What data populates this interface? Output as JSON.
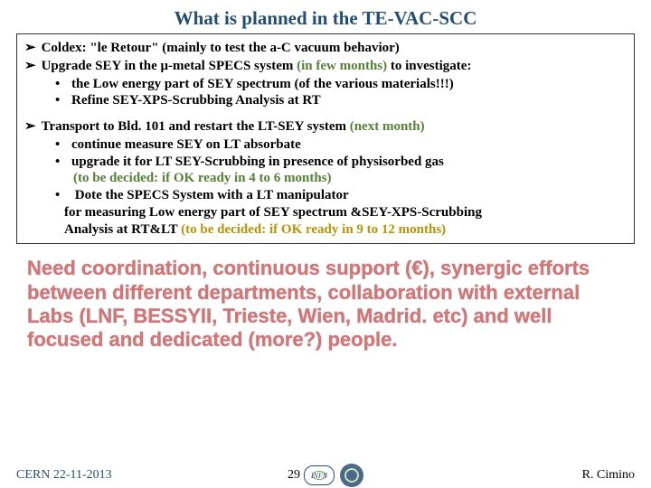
{
  "title": "What is planned in the TE-VAC-SCC",
  "block1": {
    "item1_prefix": "Coldex: \"le Retour\" ",
    "item1_suffix": "(mainly to test the a-C vacuum behavior)",
    "item2_prefix": "Upgrade SEY in the μ-metal SPECS system ",
    "item2_green": "(in few months)",
    "item2_suffix": " to investigate:",
    "sub1": "the Low energy part of SEY spectrum (of the various materials!!!)",
    "sub2": "Refine SEY-XPS-Scrubbing Analysis at RT"
  },
  "block2": {
    "item1_prefix": "Transport to Bld. 101 and restart the LT-SEY system ",
    "item1_green": "(next month)",
    "sub1": "continue measure SEY on LT absorbate",
    "sub2": "upgrade it for LT SEY-Scrubbing in presence of physisorbed gas",
    "sub2_paren": "(to be decided: if OK ready in 4 to 6 months)",
    "sub3a": "Dote the SPECS System with a LT manipulator",
    "sub3b": "for measuring Low energy part of SEY spectrum &SEY-XPS-Scrubbing",
    "sub3c_prefix": "Analysis at RT&LT ",
    "sub3c_orange": "(to be decided: if OK ready in 9 to 12 months)"
  },
  "need": "Need coordination, continuous support (€), synergic efforts between different departments, collaboration with external Labs (LNF, BESSYII, Trieste, Wien, Madrid. etc)  and well focused and dedicated (more?) people.",
  "footer": {
    "left": "CERN  22-11-2013",
    "page": "29",
    "right": "R. Cimino"
  }
}
